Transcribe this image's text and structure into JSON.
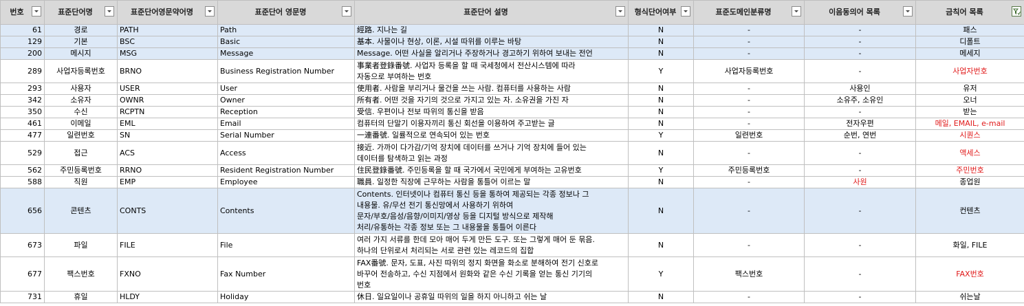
{
  "headers": {
    "no": "번호",
    "name": "표준단어명",
    "abbr": "표준단어영문약어명",
    "eng": "표준단어 영문명",
    "desc": "표준단어 설명",
    "formal": "형식단어여부",
    "domain": "표준도메인분류명",
    "synonym": "이음동의어 목록",
    "forbidden": "금칙어 목록"
  },
  "rows": [
    {
      "no": "61",
      "name": "경로",
      "abbr": "PATH",
      "eng": "Path",
      "desc": [
        "經路. 지나는 길"
      ],
      "formal": "N",
      "domain": "-",
      "synonym": "-",
      "forbidden": "패스",
      "forbidden_red": false
    },
    {
      "no": "129",
      "name": "기본",
      "abbr": "BSC",
      "eng": "Basic",
      "desc": [
        "基本. 사물이나 현상, 이론, 시설 따위를 이루는 바탕"
      ],
      "formal": "N",
      "domain": "-",
      "synonym": "-",
      "forbidden": "디폴트",
      "forbidden_red": false
    },
    {
      "no": "200",
      "name": "메시지",
      "abbr": "MSG",
      "eng": "Message",
      "desc": [
        "Message. 어떤 사실을 알리거나 주장하거나 경고하기 위하여 보내는 전언"
      ],
      "formal": "N",
      "domain": "-",
      "synonym": "-",
      "forbidden": "메세지",
      "forbidden_red": false
    },
    {
      "no": "289",
      "name": "사업자등록번호",
      "abbr": "BRNO",
      "eng": "Business Registration Number",
      "desc": [
        "事業者登錄番號. 사업자 등록을 할 때 국세청에서 전산시스템에 따라",
        "자동으로 부여하는 번호"
      ],
      "formal": "Y",
      "domain": "사업자등록번호",
      "synonym": "-",
      "forbidden": "사업자번호",
      "forbidden_red": true
    },
    {
      "no": "293",
      "name": "사용자",
      "abbr": "USER",
      "eng": "User",
      "desc": [
        "使用者. 사람을 부리거나 물건을 쓰는 사람. 컴퓨터를 사용하는 사람"
      ],
      "formal": "N",
      "domain": "-",
      "synonym": "사용인",
      "forbidden": "유저",
      "forbidden_red": false
    },
    {
      "no": "342",
      "name": "소유자",
      "abbr": "OWNR",
      "eng": "Owner",
      "desc": [
        "所有者. 어떤 것을 자기의 것으로 가지고 있는 자. 소유권을 가진 자"
      ],
      "formal": "N",
      "domain": "-",
      "synonym": "소유주, 소유인",
      "forbidden": "오너",
      "forbidden_red": false
    },
    {
      "no": "350",
      "name": "수신",
      "abbr": "RCPTN",
      "eng": "Reception",
      "desc": [
        "受信. 우편이나 전보 따위의 통신을 받음"
      ],
      "formal": "N",
      "domain": "-",
      "synonym": "-",
      "forbidden": "받는",
      "forbidden_red": false
    },
    {
      "no": "461",
      "name": "이메일",
      "abbr": "EML",
      "eng": "Email",
      "desc": [
        "컴퓨터의 단말기 이용자끼리 통신 회선을 이용하여 주고받는 글"
      ],
      "formal": "N",
      "domain": "-",
      "synonym": "전자우편",
      "forbidden": "메일, EMAIL, e-mail",
      "forbidden_red": true
    },
    {
      "no": "477",
      "name": "일련번호",
      "abbr": "SN",
      "eng": "Serial Number",
      "desc": [
        "一連番號. 일률적으로 연속되어 있는 번호"
      ],
      "formal": "Y",
      "domain": "일련번호",
      "synonym": "순번, 연번",
      "forbidden": "시퀀스",
      "forbidden_red": true
    },
    {
      "no": "529",
      "name": "접근",
      "abbr": "ACS",
      "eng": "Access",
      "desc": [
        "接近. 가까이 다가감/기억 장치에 데이터를 쓰거나 기억 장치에 들어 있는",
        "데이터를 탐색하고 읽는 과정"
      ],
      "formal": "N",
      "domain": "-",
      "synonym": "-",
      "forbidden": "액세스",
      "forbidden_red": true
    },
    {
      "no": "562",
      "name": "주민등록번호",
      "abbr": "RRNO",
      "eng": "Resident Registration Number",
      "desc": [
        "住民登錄番號. 주민등록을 할 때 국가에서 국민에게 부여하는 고유번호"
      ],
      "formal": "Y",
      "domain": "주민등록번호",
      "synonym": "-",
      "forbidden": "주민번호",
      "forbidden_red": true
    },
    {
      "no": "588",
      "name": "직원",
      "abbr": "EMP",
      "eng": "Employee",
      "desc": [
        "職員. 일정한 직장에 근무하는 사람을 통틀어 이르는 말"
      ],
      "formal": "N",
      "domain": "-",
      "synonym": "사원",
      "synonym_red": true,
      "forbidden": "종업원",
      "forbidden_red": false
    },
    {
      "no": "656",
      "name": "콘텐츠",
      "abbr": "CONTS",
      "eng": "Contents",
      "desc": [
        "Contents. 인터넷이나 컴퓨터 통신 등을 통하여 제공되는 각종 정보나 그",
        "내용물. 유/무선 전기 통신망에서 사용하기 위하여",
        "문자/부호/음성/음향/이미지/영상 등을 디지털 방식으로 제작해",
        "처리/유통하는 각종 정보 또는 그 내용물을 통틀어 이른다"
      ],
      "formal": "N",
      "domain": "-",
      "synonym": "-",
      "forbidden": "컨텐츠",
      "forbidden_red": false
    },
    {
      "no": "673",
      "name": "파일",
      "abbr": "FILE",
      "eng": "File",
      "desc": [
        "여러 가지 서류를 한데 모아 매어 두게 만든 도구. 또는 그렇게 매어 둔 묶음.",
        "하나의 단위로서 처리되는 서로 관련 있는 레코드의 집합"
      ],
      "formal": "N",
      "domain": "-",
      "synonym": "-",
      "forbidden": "화일, FILE",
      "forbidden_red": false
    },
    {
      "no": "677",
      "name": "팩스번호",
      "abbr": "FXNO",
      "eng": "Fax Number",
      "desc": [
        "FAX番號. 문자, 도표, 사진 따위의 정지 화면을 화소로 분해하여 전기 신호로",
        "바꾸어 전송하고, 수신 지점에서 원화와 같은 수신 기록을 얻는 통신 기기의",
        "번호"
      ],
      "formal": "Y",
      "domain": "팩스번호",
      "synonym": "-",
      "forbidden": "FAX번호",
      "forbidden_red": true
    },
    {
      "no": "731",
      "name": "휴일",
      "abbr": "HLDY",
      "eng": "Holiday",
      "desc": [
        "休日. 일요일이나 공휴일 따위의 일을 하지 아니하고 쉬는 날"
      ],
      "formal": "N",
      "domain": "-",
      "synonym": "-",
      "forbidden": "쉬는날",
      "forbidden_red": false
    }
  ],
  "selected_rows": [
    0,
    1,
    2,
    12
  ]
}
